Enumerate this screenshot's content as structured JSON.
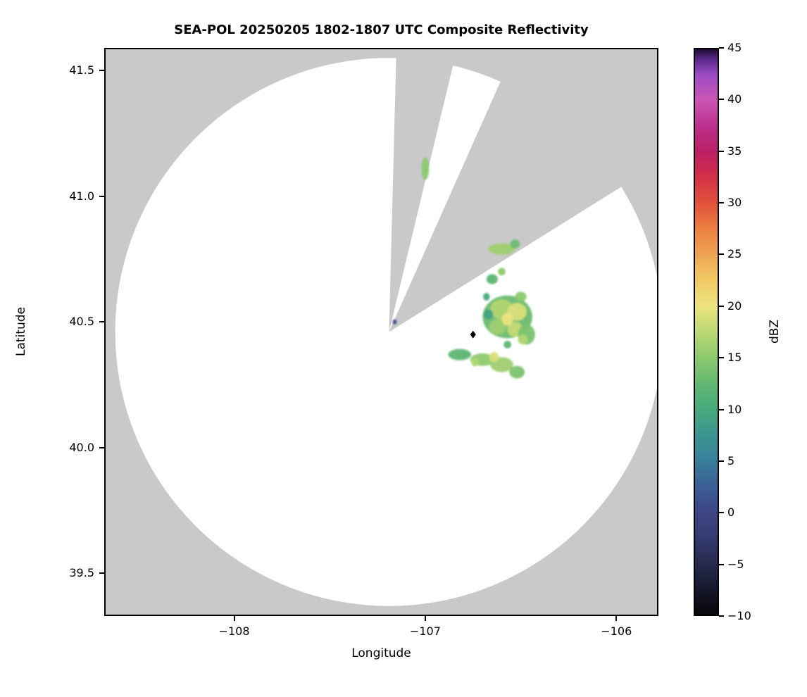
{
  "figure": {
    "title": "SEA-POL 20250205 1802-1807 UTC Composite Reflectivity",
    "xlabel": "Longitude",
    "ylabel": "Latitude",
    "colorbar_label": "dBZ"
  },
  "chart_data": {
    "type": "heatmap",
    "title": "SEA-POL 20250205 1802-1807 UTC Composite Reflectivity",
    "xlabel": "Longitude",
    "ylabel": "Latitude",
    "xlim": [
      -108.68,
      -105.78
    ],
    "ylim": [
      39.33,
      41.59
    ],
    "grid": false,
    "xticks": [
      {
        "v": -108,
        "label": "−108"
      },
      {
        "v": -107,
        "label": "−107"
      },
      {
        "v": -106,
        "label": "−106"
      }
    ],
    "yticks": [
      {
        "v": 39.5,
        "label": "39.5"
      },
      {
        "v": 40.0,
        "label": "40.0"
      },
      {
        "v": 40.5,
        "label": "40.5"
      },
      {
        "v": 41.0,
        "label": "41.0"
      },
      {
        "v": 41.5,
        "label": "41.5"
      }
    ],
    "colorbar": {
      "label": "dBZ",
      "min": -10,
      "max": 45,
      "ticks": [
        {
          "v": -10,
          "label": "−10"
        },
        {
          "v": -5,
          "label": "−5"
        },
        {
          "v": 0,
          "label": "0"
        },
        {
          "v": 5,
          "label": "5"
        },
        {
          "v": 10,
          "label": "10"
        },
        {
          "v": 15,
          "label": "15"
        },
        {
          "v": 20,
          "label": "20"
        },
        {
          "v": 25,
          "label": "25"
        },
        {
          "v": 30,
          "label": "30"
        },
        {
          "v": 35,
          "label": "35"
        },
        {
          "v": 40,
          "label": "40"
        },
        {
          "v": 45,
          "label": "45"
        }
      ],
      "stops": [
        {
          "v": -10,
          "c": "#07070a"
        },
        {
          "v": -7.5,
          "c": "#16182b"
        },
        {
          "v": -5,
          "c": "#262a4d"
        },
        {
          "v": -2.5,
          "c": "#343a70"
        },
        {
          "v": 0,
          "c": "#3d4584"
        },
        {
          "v": 2.5,
          "c": "#3b5f94"
        },
        {
          "v": 5,
          "c": "#387f9b"
        },
        {
          "v": 7.5,
          "c": "#3b9590"
        },
        {
          "v": 10,
          "c": "#47aa7c"
        },
        {
          "v": 12.5,
          "c": "#63b871"
        },
        {
          "v": 15,
          "c": "#8cc96d"
        },
        {
          "v": 17.5,
          "c": "#bcd975"
        },
        {
          "v": 20,
          "c": "#ece47f"
        },
        {
          "v": 22.5,
          "c": "#f1cb65"
        },
        {
          "v": 25,
          "c": "#f0a553"
        },
        {
          "v": 27.5,
          "c": "#ec8042"
        },
        {
          "v": 30,
          "c": "#e15239"
        },
        {
          "v": 32.5,
          "c": "#d33148"
        },
        {
          "v": 35,
          "c": "#bc2064"
        },
        {
          "v": 37.5,
          "c": "#bc2f8c"
        },
        {
          "v": 40,
          "c": "#cb55b4"
        },
        {
          "v": 42.5,
          "c": "#9c4cc3"
        },
        {
          "v": 44,
          "c": "#5a2a8a"
        },
        {
          "v": 45,
          "c": "#1f0e33"
        }
      ]
    },
    "radar": {
      "center_lon": -107.19,
      "center_lat": 40.46,
      "range_deg_lat": 1.09,
      "blocked_sectors_deg": [
        [
          1.5,
          13.5
        ],
        [
          24,
          58
        ]
      ],
      "background_color": "#c9c9c9",
      "coverage_color": "#ffffff"
    },
    "echoes": [
      {
        "lon": -106.57,
        "lat": 40.52,
        "w": 0.26,
        "h": 0.17,
        "dbz": 13
      },
      {
        "lon": -106.6,
        "lat": 40.55,
        "w": 0.12,
        "h": 0.08,
        "dbz": 17
      },
      {
        "lon": -106.52,
        "lat": 40.54,
        "w": 0.1,
        "h": 0.07,
        "dbz": 19
      },
      {
        "lon": -106.62,
        "lat": 40.48,
        "w": 0.09,
        "h": 0.06,
        "dbz": 16
      },
      {
        "lon": -106.53,
        "lat": 40.47,
        "w": 0.08,
        "h": 0.06,
        "dbz": 18
      },
      {
        "lon": -106.57,
        "lat": 40.51,
        "w": 0.06,
        "h": 0.05,
        "dbz": 20
      },
      {
        "lon": -106.47,
        "lat": 40.45,
        "w": 0.09,
        "h": 0.08,
        "dbz": 14
      },
      {
        "lon": -106.49,
        "lat": 40.43,
        "w": 0.05,
        "h": 0.04,
        "dbz": 17
      },
      {
        "lon": -106.67,
        "lat": 40.53,
        "w": 0.05,
        "h": 0.04,
        "dbz": 9
      },
      {
        "lon": -106.5,
        "lat": 40.6,
        "w": 0.06,
        "h": 0.04,
        "dbz": 15
      },
      {
        "lon": -106.57,
        "lat": 40.41,
        "w": 0.04,
        "h": 0.03,
        "dbz": 12
      },
      {
        "lon": -106.6,
        "lat": 40.79,
        "w": 0.14,
        "h": 0.045,
        "dbz": 16
      },
      {
        "lon": -106.53,
        "lat": 40.81,
        "w": 0.05,
        "h": 0.035,
        "dbz": 13
      },
      {
        "lon": -106.65,
        "lat": 40.67,
        "w": 0.06,
        "h": 0.04,
        "dbz": 12
      },
      {
        "lon": -106.6,
        "lat": 40.7,
        "w": 0.04,
        "h": 0.03,
        "dbz": 15
      },
      {
        "lon": -106.68,
        "lat": 40.6,
        "w": 0.035,
        "h": 0.03,
        "dbz": 10
      },
      {
        "lon": -107.0,
        "lat": 41.11,
        "w": 0.04,
        "h": 0.09,
        "dbz": 15
      },
      {
        "lon": -106.82,
        "lat": 40.37,
        "w": 0.12,
        "h": 0.045,
        "dbz": 12
      },
      {
        "lon": -106.7,
        "lat": 40.35,
        "w": 0.13,
        "h": 0.05,
        "dbz": 15
      },
      {
        "lon": -106.6,
        "lat": 40.33,
        "w": 0.12,
        "h": 0.06,
        "dbz": 16
      },
      {
        "lon": -106.52,
        "lat": 40.3,
        "w": 0.08,
        "h": 0.05,
        "dbz": 14
      },
      {
        "lon": -106.64,
        "lat": 40.36,
        "w": 0.05,
        "h": 0.04,
        "dbz": 19
      },
      {
        "lon": -106.74,
        "lat": 40.34,
        "w": 0.04,
        "h": 0.035,
        "dbz": 17
      },
      {
        "lon": -107.16,
        "lat": 40.5,
        "w": 0.022,
        "h": 0.02,
        "dbz": 1
      }
    ],
    "marker": {
      "lon": -106.75,
      "lat": 40.45,
      "shape": "diamond",
      "color": "#000000"
    }
  }
}
